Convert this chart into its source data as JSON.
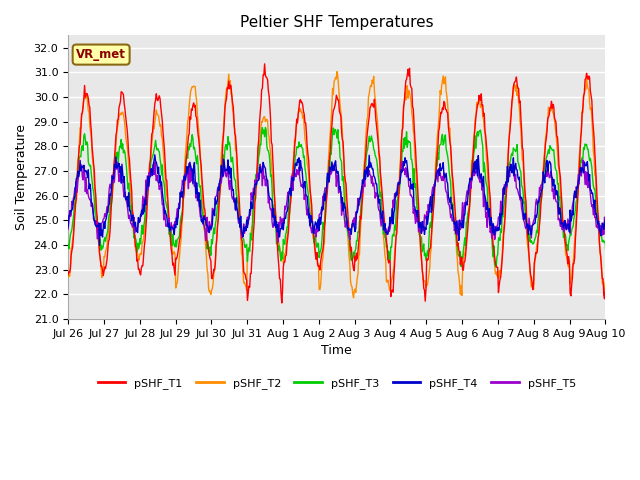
{
  "title": "Peltier SHF Temperatures",
  "xlabel": "Time",
  "ylabel": "Soil Temperature",
  "ylim": [
    21.0,
    32.5
  ],
  "yticks": [
    21.0,
    22.0,
    23.0,
    24.0,
    25.0,
    26.0,
    27.0,
    28.0,
    29.0,
    30.0,
    31.0,
    32.0
  ],
  "plot_bg_color": "#ffffff",
  "axes_bg_color": "#e8e8e8",
  "grid_color": "#ffffff",
  "annotation_label": "VR_met",
  "annotation_bg": "#ffffaa",
  "annotation_border": "#8B6914",
  "annotation_text_color": "#8B0000",
  "series_colors": {
    "pSHF_T1": "#ff0000",
    "pSHF_T2": "#ff8c00",
    "pSHF_T3": "#00cc00",
    "pSHF_T4": "#0000cc",
    "pSHF_T5": "#9900cc"
  },
  "xtick_labels": [
    "Jul 26",
    "Jul 27",
    "Jul 28",
    "Jul 29",
    "Jul 30",
    "Jul 31",
    "Aug 1",
    "Aug 2",
    "Aug 3",
    "Aug 4",
    "Aug 5",
    "Aug 6",
    "Aug 7",
    "Aug 8",
    "Aug 9",
    "Aug 10"
  ],
  "num_days": 16,
  "samples_per_day": 48,
  "lw": 1.0,
  "title_fontsize": 11,
  "axis_label_fontsize": 9,
  "tick_fontsize": 8,
  "legend_fontsize": 8
}
